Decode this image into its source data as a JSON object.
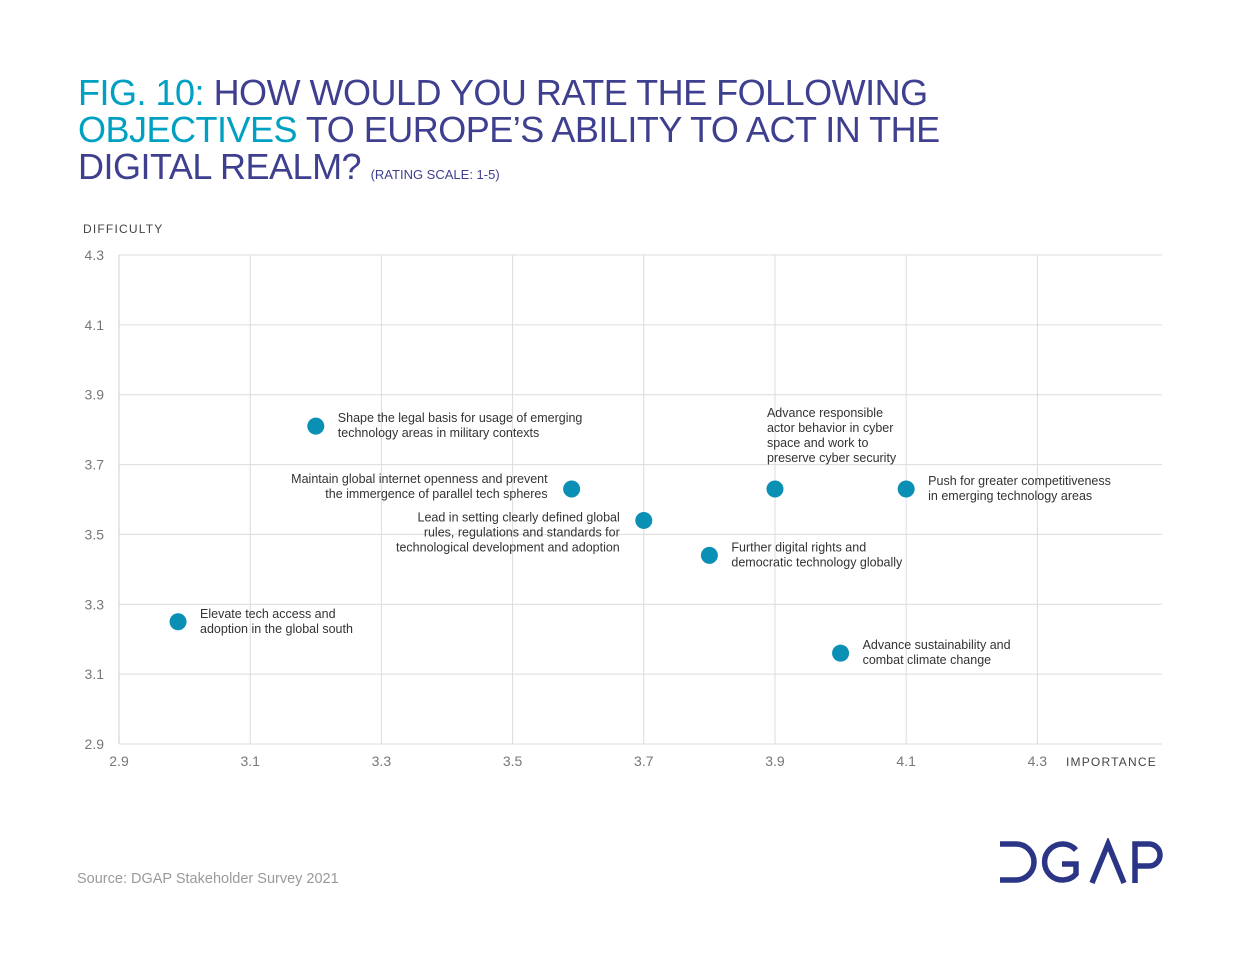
{
  "title": {
    "fig_label": "FIG. 10:",
    "line1_rest": "HOW WOULD YOU RATE THE FOLLOWING",
    "highlight": "OBJECTIVES",
    "line2_rest": "TO EUROPE’S ABILITY TO ACT IN THE",
    "line3": "DIGITAL REALM?",
    "subtitle": "(RATING SCALE: 1-5)"
  },
  "colors": {
    "accent": "#00a0c3",
    "navy": "#3f3f8f",
    "point": "#0a8fb5",
    "logo": "#2a3585"
  },
  "chart_data": {
    "type": "scatter",
    "xlabel": "IMPORTANCE",
    "ylabel": "DIFFICULTY",
    "xlim": [
      2.9,
      4.49
    ],
    "ylim": [
      2.9,
      4.3
    ],
    "x_ticks": [
      "2.9",
      "3.1",
      "3.3",
      "3.5",
      "3.7",
      "3.9",
      "4.1",
      "4.3"
    ],
    "y_ticks": [
      "2.9",
      "3.1",
      "3.3",
      "3.5",
      "3.7",
      "3.9",
      "4.1",
      "4.3"
    ],
    "grid": true,
    "points": [
      {
        "x": 3.2,
        "y": 3.81,
        "label_position": "right",
        "label": [
          "Shape the legal basis for usage of emerging",
          "technology areas in military contexts"
        ]
      },
      {
        "x": 3.59,
        "y": 3.63,
        "label_position": "left",
        "label": [
          "Maintain global internet openness and prevent",
          "the immergence of parallel tech spheres"
        ]
      },
      {
        "x": 3.7,
        "y": 3.54,
        "label_position": "left",
        "label": [
          "Lead in setting clearly defined global",
          "rules, regulations and standards for",
          "technological development and adoption"
        ]
      },
      {
        "x": 3.9,
        "y": 3.63,
        "label_position": "above",
        "label": [
          "Advance responsible",
          "actor behavior in cyber",
          "space and work to",
          "preserve cyber security"
        ]
      },
      {
        "x": 4.1,
        "y": 3.63,
        "label_position": "right",
        "label": [
          "Push for greater competitiveness",
          "in emerging technology areas"
        ]
      },
      {
        "x": 3.8,
        "y": 3.44,
        "label_position": "right",
        "label": [
          "Further digital rights and",
          "democratic technology globally"
        ]
      },
      {
        "x": 2.99,
        "y": 3.25,
        "label_position": "right",
        "label": [
          "Elevate tech access and",
          "adoption in the global south"
        ]
      },
      {
        "x": 4.0,
        "y": 3.16,
        "label_position": "right",
        "label": [
          "Advance sustainability and",
          "combat climate change"
        ]
      }
    ]
  },
  "source": "Source: DGAP Stakeholder Survey 2021",
  "logo_text": "DGAP"
}
